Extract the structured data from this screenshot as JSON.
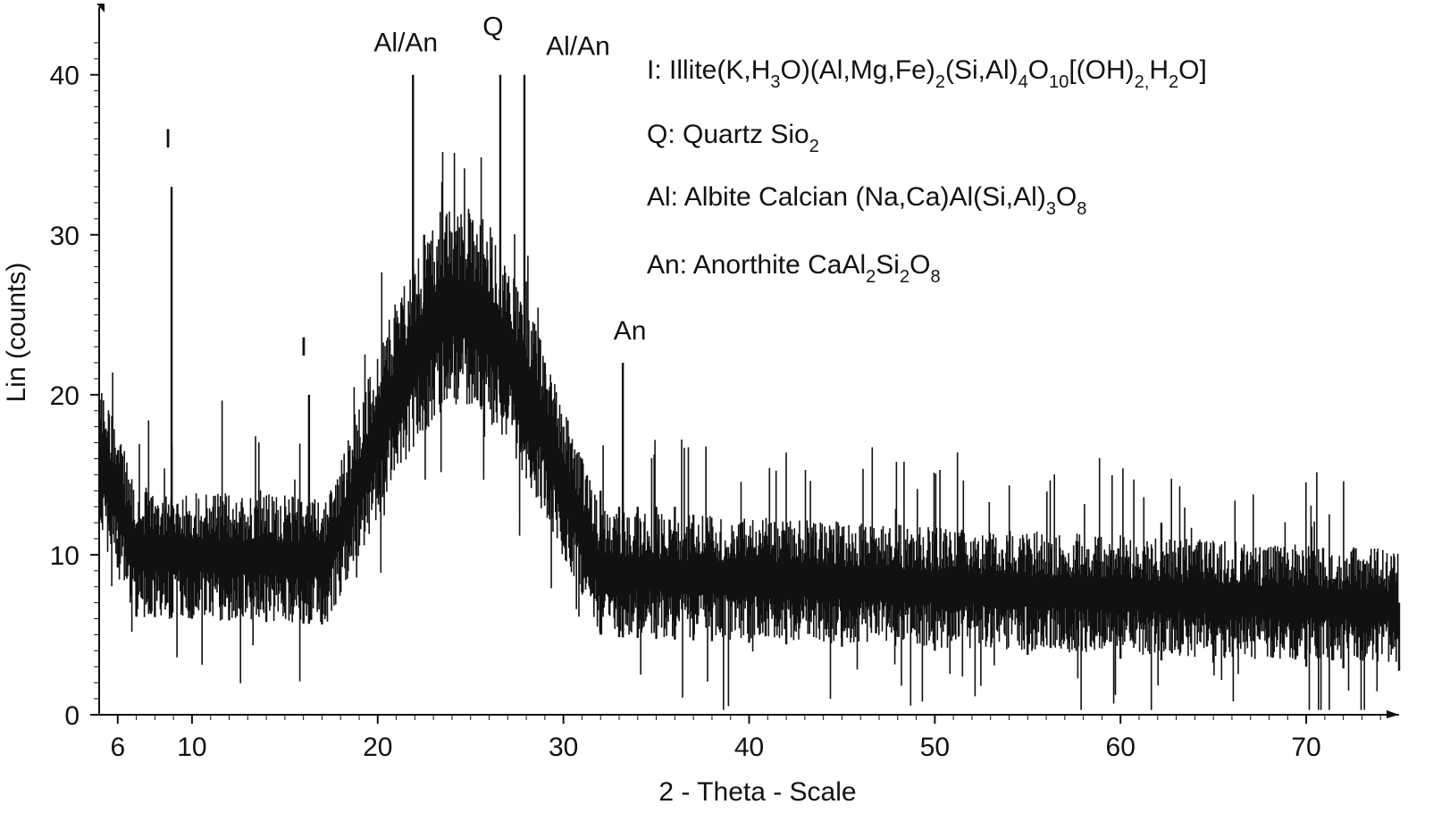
{
  "chart_data": {
    "type": "line",
    "title": "",
    "xlabel": "2 - Theta - Scale",
    "ylabel": "Lin (counts)",
    "xlim": [
      5,
      75
    ],
    "ylim": [
      0,
      43
    ],
    "x_ticks": [
      6,
      10,
      20,
      30,
      40,
      50,
      60,
      70
    ],
    "y_ticks": [
      0,
      10,
      20,
      30,
      40
    ],
    "grid": false,
    "series": [
      {
        "style": "noisy vertical-line profile",
        "x": [
          5,
          6,
          7,
          8,
          8.9,
          10,
          12,
          14,
          16,
          16.3,
          17,
          18,
          19,
          20,
          21,
          21.9,
          22.5,
          23,
          24,
          25,
          26,
          26.6,
          27,
          27.9,
          28.5,
          29,
          30,
          31,
          32,
          33,
          33.2,
          34,
          35,
          36,
          37,
          38,
          40,
          42,
          45,
          50,
          55,
          60,
          62.2,
          65,
          70,
          72,
          75
        ],
        "y": [
          12,
          11,
          10.5,
          10,
          33,
          9,
          8.5,
          9,
          10,
          20,
          12,
          13,
          16,
          20,
          23,
          40,
          30,
          26,
          26,
          26,
          25,
          40,
          27,
          40,
          24,
          22,
          18,
          16,
          14,
          13,
          22,
          13,
          13,
          13,
          12.5,
          11,
          10,
          9.5,
          9,
          8.5,
          8.5,
          8,
          12,
          8,
          7.5,
          7.5,
          7
        ]
      }
    ],
    "peak_labels": [
      {
        "text": "I",
        "x": 8.9,
        "y": 33
      },
      {
        "text": "I",
        "x": 16.3,
        "y": 20
      },
      {
        "text": "Al/An",
        "x": 21.9,
        "y": 40
      },
      {
        "text": "Q",
        "x": 26.6,
        "y": 40
      },
      {
        "text": "Al/An",
        "x": 27.9,
        "y": 40
      },
      {
        "text": "An",
        "x": 33.2,
        "y": 22
      }
    ],
    "legend": [
      {
        "parts": [
          {
            "t": "I: Illite(K,H",
            "sub": false
          },
          {
            "t": "3",
            "sub": true
          },
          {
            "t": "O)(Al,Mg,Fe)",
            "sub": false
          },
          {
            "t": "2",
            "sub": true
          },
          {
            "t": "(Si,Al)",
            "sub": false
          },
          {
            "t": "4",
            "sub": true
          },
          {
            "t": "O",
            "sub": false
          },
          {
            "t": "10",
            "sub": true
          },
          {
            "t": "[(OH)",
            "sub": false
          },
          {
            "t": "2,",
            "sub": true
          },
          {
            "t": "H",
            "sub": false
          },
          {
            "t": "2",
            "sub": true
          },
          {
            "t": "O]",
            "sub": false
          }
        ]
      },
      {
        "parts": [
          {
            "t": "Q: Quartz Sio",
            "sub": false
          },
          {
            "t": "2",
            "sub": true
          }
        ]
      },
      {
        "parts": [
          {
            "t": "Al: Albite Calcian (Na,Ca)Al(Si,Al)",
            "sub": false
          },
          {
            "t": "3",
            "sub": true
          },
          {
            "t": "O",
            "sub": false
          },
          {
            "t": "8",
            "sub": true
          }
        ]
      },
      {
        "parts": [
          {
            "t": "An: Anorthite CaAl",
            "sub": false
          },
          {
            "t": "2",
            "sub": true
          },
          {
            "t": "Si",
            "sub": false
          },
          {
            "t": "2",
            "sub": true
          },
          {
            "t": "O",
            "sub": false
          },
          {
            "t": "8",
            "sub": true
          }
        ]
      }
    ],
    "legend_placement": "top-right",
    "line_color": "#111111"
  }
}
